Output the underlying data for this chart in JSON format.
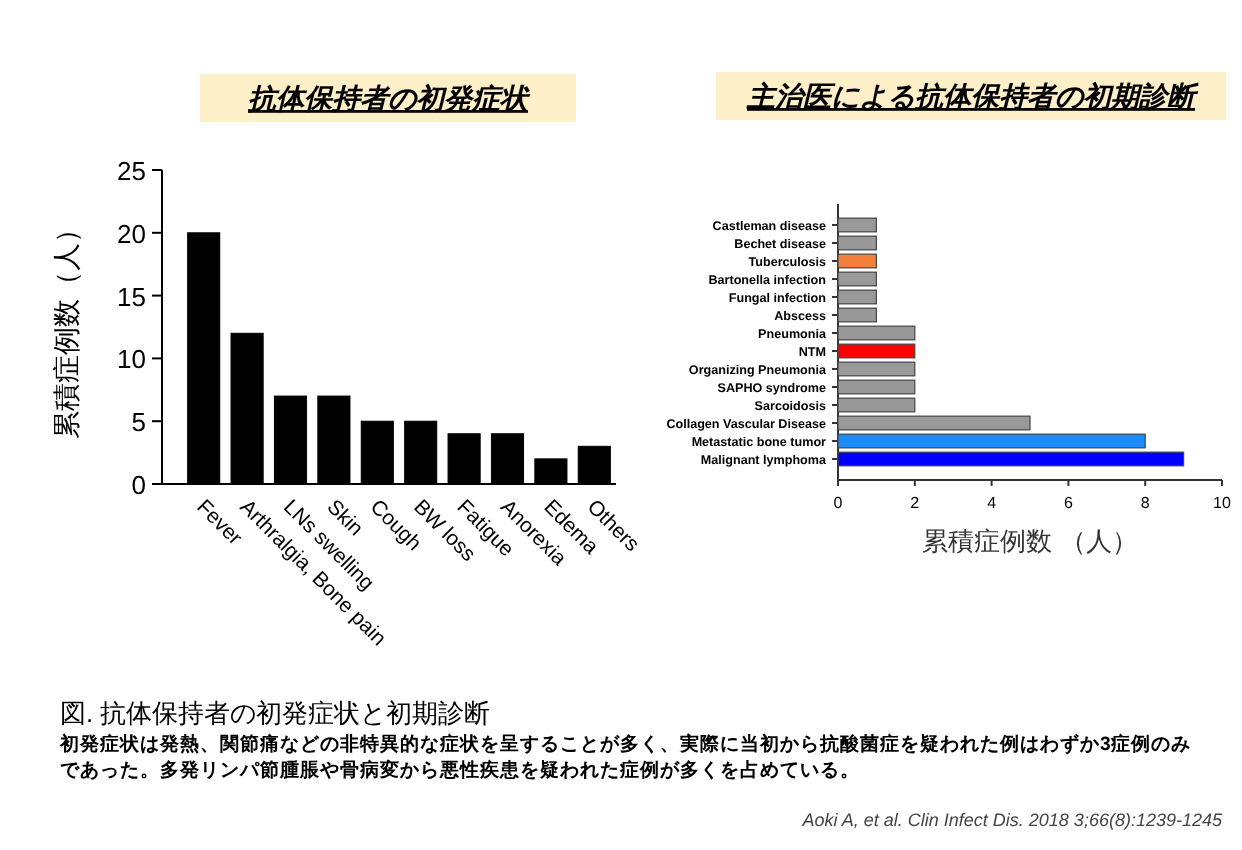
{
  "chart_data": [
    {
      "type": "bar",
      "title": "抗体保持者の初発症状",
      "ylabel": "累積症例数（人）",
      "categories": [
        "Fever",
        "Arthralgia, Bone pain",
        "LNs swelling",
        "Skin",
        "Cough",
        "BW loss",
        "Fatigue",
        "Anorexia",
        "Edema",
        "Others"
      ],
      "values": [
        20,
        12,
        7,
        7,
        5,
        5,
        4,
        4,
        2,
        3
      ],
      "color": "#000000",
      "ylim": [
        0,
        25
      ],
      "yticks": [
        0,
        5,
        10,
        15,
        20,
        25
      ],
      "annotations": [
        "図. 抗体保持者の初発症状と初期診断",
        "初発症状は発熱、関節痛などの非特異的な症状を呈することが多く、実際に当初から抗酸菌症を疑われた例はわずか3症例のみ",
        "であった。多発リンパ節腫脹や骨病変から悪性疾患を疑われた症例が多くを占めている。",
        "Aoki A, et al. Clin Infect Dis. 2018 3;66(8):1239-1245"
      ]
    },
    {
      "type": "bar",
      "orientation": "horizontal",
      "title": "主治医による抗体保持者の初期診断",
      "xlabel": "累積症例数 （人）",
      "categories": [
        "Castleman disease",
        "Bechet disease",
        "Tuberculosis",
        "Bartonella infection",
        "Fungal infection",
        "Abscess",
        "Pneumonia",
        "NTM",
        "Organizing Pneumonia",
        "SAPHO syndrome",
        "Sarcoidosis",
        "Collagen Vascular Disease",
        "Metastatic bone tumor",
        "Malignant lymphoma"
      ],
      "values": [
        1,
        1,
        1,
        1,
        1,
        1,
        2,
        2,
        2,
        2,
        2,
        5,
        8,
        9
      ],
      "colors": [
        "#999999",
        "#999999",
        "#f4803c",
        "#999999",
        "#999999",
        "#999999",
        "#999999",
        "#ff0000",
        "#999999",
        "#999999",
        "#999999",
        "#999999",
        "#1a8cff",
        "#0000ff"
      ],
      "xlim": [
        0,
        10
      ],
      "xticks": [
        0,
        2,
        4,
        6,
        8,
        10
      ]
    }
  ]
}
